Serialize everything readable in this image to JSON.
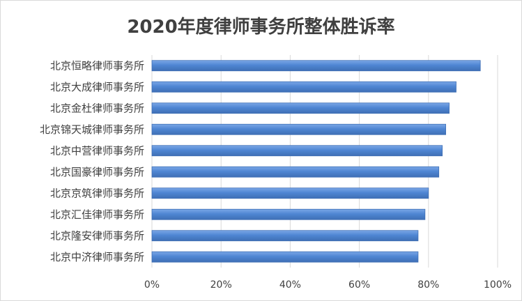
{
  "chart_data": {
    "type": "bar",
    "orientation": "horizontal",
    "title": "2020年度律师事务所整体胜诉率",
    "categories": [
      "北京恒略律师事务所",
      "北京大成律师事务所",
      "北京金杜律师事务所",
      "北京锦天城律师事务所",
      "北京中营律师事务所",
      "北京国豪律师事务所",
      "北京京筑律师事务所",
      "北京汇佳律师事务所",
      "北京隆安律师事务所",
      "北京中济律师事务所"
    ],
    "values": [
      0.95,
      0.88,
      0.86,
      0.85,
      0.84,
      0.83,
      0.8,
      0.79,
      0.77,
      0.77
    ],
    "xlim": [
      0,
      1
    ],
    "xticks": [
      0,
      0.2,
      0.4,
      0.6,
      0.8,
      1.0
    ],
    "xtick_labels": [
      "0%",
      "20%",
      "40%",
      "60%",
      "80%",
      "100%"
    ],
    "grid": true,
    "legend": "none",
    "colors": {
      "bar": "#4f86d3",
      "bar_top": "#7ba7e6",
      "bar_border": "#3f6fb5",
      "grid": "#d9d9d9",
      "text": "#404040"
    }
  }
}
